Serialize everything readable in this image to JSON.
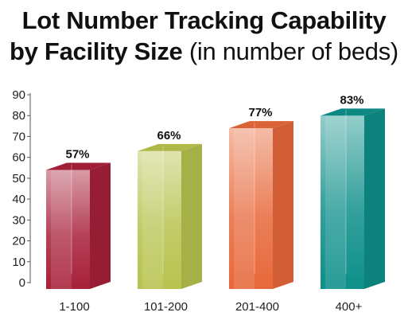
{
  "title": {
    "line1": "Lot Number Tracking Capability",
    "line2_bold": "by Facility Size",
    "line2_rest": "(in number of beds)"
  },
  "chart_data": {
    "type": "bar",
    "title": "Lot Number Tracking Capability by Facility Size (in number of beds)",
    "categories": [
      "1-100",
      "101-200",
      "201-400",
      "400+"
    ],
    "values": [
      57,
      66,
      77,
      83
    ],
    "data_labels": [
      "57%",
      "66%",
      "77%",
      "83%"
    ],
    "ylim": [
      0,
      90
    ],
    "yticks": [
      0,
      10,
      20,
      30,
      40,
      50,
      60,
      70,
      80,
      90
    ],
    "grid": false,
    "style": "3d",
    "colors": [
      "#a8203a",
      "#b7c34e",
      "#e8683a",
      "#0e8f8a"
    ]
  }
}
